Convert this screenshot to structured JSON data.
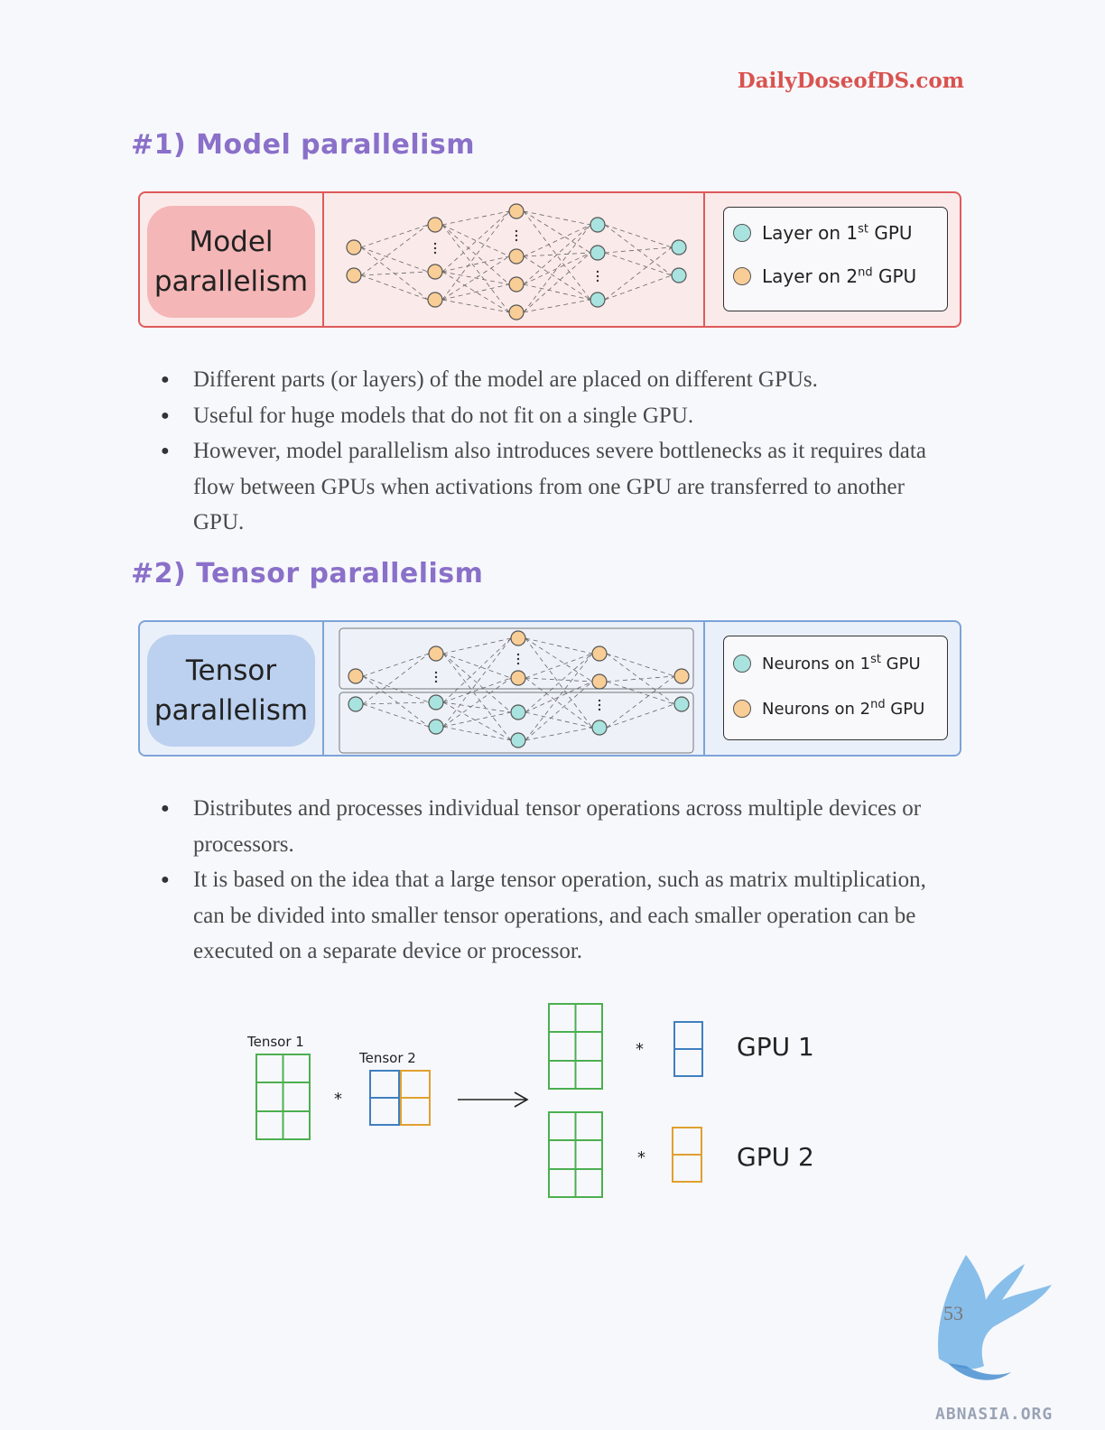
{
  "site": "DailyDoseofDS.com",
  "section1": {
    "heading": "#1) Model parallelism",
    "pill": [
      "Model",
      "parallelism"
    ],
    "legend": {
      "first": {
        "text": "Layer on 1",
        "sup": "st",
        "suffix": " GPU"
      },
      "second": {
        "text": "Layer on 2",
        "sup": "nd",
        "suffix": " GPU"
      }
    },
    "bullets": [
      "Different parts (or layers) of the model are placed on different GPUs.",
      "Useful for huge models that do not fit on a single GPU.",
      "However, model parallelism also introduces severe bottlenecks as it requires data flow between GPUs when activations from one GPU are transferred to another GPU."
    ]
  },
  "section2": {
    "heading": "#2) Tensor parallelism",
    "pill": [
      "Tensor",
      "parallelism"
    ],
    "legend": {
      "first": {
        "text": "Neurons on 1",
        "sup": "st",
        "suffix": " GPU"
      },
      "second": {
        "text": "Neurons on 2",
        "sup": "nd",
        "suffix": " GPU"
      }
    },
    "bullets": [
      "Distributes and processes individual tensor operations across multiple devices or processors.",
      "It is based on the idea that a large tensor operation, such as matrix multiplication, can be divided into smaller tensor operations, and each smaller operation can be executed on a separate device or processor."
    ]
  },
  "tensor_figure": {
    "tensor1_label": "Tensor 1",
    "tensor2_label": "Tensor 2",
    "op": "*",
    "gpu1": "GPU 1",
    "gpu2": "GPU 2",
    "colors": {
      "green": "#4caf50",
      "blue": "#3f7fbf",
      "orange": "#e0a030"
    }
  },
  "page_number": "53",
  "watermark": "ABNASIA.ORG",
  "colors": {
    "accent": "#8a70c9",
    "site": "#d9534f",
    "teal": "#a8e3df",
    "orange": "#f9cd96"
  }
}
